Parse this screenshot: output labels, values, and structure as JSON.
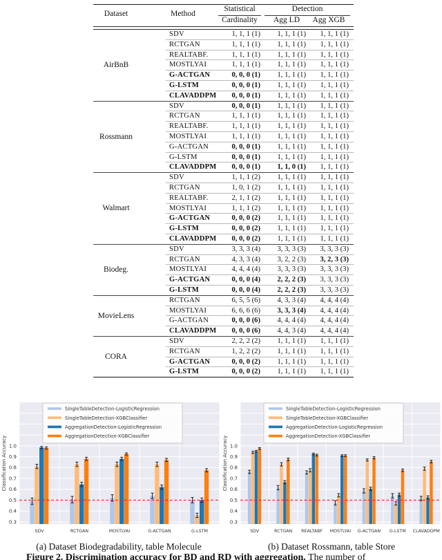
{
  "table": {
    "headers": {
      "dataset": "Dataset",
      "method": "Method",
      "statistical": "Statistical",
      "detection": "Detection",
      "cardinality": "Cardinality",
      "agg_ld": "Agg LD",
      "agg_xgb": "Agg XGB"
    },
    "groups": [
      {
        "dataset": "AirBnB",
        "rows": [
          {
            "method": "SDV",
            "mb": false,
            "cells": [
              "1, 1, 1 (1)",
              "1, 1, 1 (1)",
              "1, 1, 1 (1)"
            ],
            "cb": [
              false,
              false,
              false
            ]
          },
          {
            "method": "RCTGAN",
            "mb": false,
            "cells": [
              "1, 1, 1 (1)",
              "1, 1, 1 (1)",
              "1, 1, 1 (1)"
            ],
            "cb": [
              false,
              false,
              false
            ]
          },
          {
            "method": "REALTABF.",
            "mb": false,
            "cells": [
              "1, 1, 1 (1)",
              "1, 1, 1 (1)",
              "1, 1, 1 (1)"
            ],
            "cb": [
              false,
              false,
              false
            ]
          },
          {
            "method": "MOSTLYAI",
            "mb": false,
            "cells": [
              "1, 1, 1 (1)",
              "1, 1, 1 (1)",
              "1, 1, 1 (1)"
            ],
            "cb": [
              false,
              false,
              false
            ]
          },
          {
            "method": "G-ACTGAN",
            "mb": true,
            "cells": [
              "0, 0, 0 (1)",
              "1, 1, 1 (1)",
              "1, 1, 1 (1)"
            ],
            "cb": [
              true,
              false,
              false
            ]
          },
          {
            "method": "G-LSTM",
            "mb": true,
            "cells": [
              "0, 0, 0 (1)",
              "1, 1, 1 (1)",
              "1, 1, 1 (1)"
            ],
            "cb": [
              true,
              false,
              false
            ]
          },
          {
            "method": "CLAVADDPM",
            "mb": true,
            "cells": [
              "0, 0, 0 (1)",
              "1, 1, 1 (1)",
              "1, 1, 1 (1)"
            ],
            "cb": [
              true,
              false,
              false
            ]
          }
        ]
      },
      {
        "dataset": "Rossmann",
        "rows": [
          {
            "method": "SDV",
            "mb": false,
            "cells": [
              "0, 0, 0 (1)",
              "1, 1, 1 (1)",
              "1, 1, 1 (1)"
            ],
            "cb": [
              true,
              false,
              false
            ]
          },
          {
            "method": "RCTGAN",
            "mb": false,
            "cells": [
              "1, 1, 1 (1)",
              "1, 1, 1 (1)",
              "1, 1, 1 (1)"
            ],
            "cb": [
              false,
              false,
              false
            ]
          },
          {
            "method": "REALTABF.",
            "mb": false,
            "cells": [
              "1, 1, 1 (1)",
              "1, 1, 1 (1)",
              "1, 1, 1 (1)"
            ],
            "cb": [
              false,
              false,
              false
            ]
          },
          {
            "method": "MOSTLYAI",
            "mb": false,
            "cells": [
              "1, 1, 1 (1)",
              "1, 1, 1 (1)",
              "1, 1, 1 (1)"
            ],
            "cb": [
              false,
              false,
              false
            ]
          },
          {
            "method": "G-ACTGAN",
            "mb": false,
            "cells": [
              "0, 0, 0 (1)",
              "1, 1, 1 (1)",
              "1, 1, 1 (1)"
            ],
            "cb": [
              true,
              false,
              false
            ]
          },
          {
            "method": "G-LSTM",
            "mb": false,
            "cells": [
              "0, 0, 0 (1)",
              "1, 1, 1 (1)",
              "1, 1, 1 (1)"
            ],
            "cb": [
              true,
              false,
              false
            ]
          },
          {
            "method": "CLAVADDPM",
            "mb": true,
            "cells": [
              "0, 0, 0 (1)",
              "1, 1, 0 (1)",
              "1, 1, 1 (1)"
            ],
            "cb": [
              true,
              true,
              false
            ]
          }
        ]
      },
      {
        "dataset": "Walmart",
        "rows": [
          {
            "method": "SDV",
            "mb": false,
            "cells": [
              "1, 1, 1 (2)",
              "1, 1, 1 (1)",
              "1, 1, 1 (1)"
            ],
            "cb": [
              false,
              false,
              false
            ]
          },
          {
            "method": "RCTGAN",
            "mb": false,
            "cells": [
              "1, 0, 1 (2)",
              "1, 1, 1 (1)",
              "1, 1, 1 (1)"
            ],
            "cb": [
              false,
              false,
              false
            ]
          },
          {
            "method": "REALTABF.",
            "mb": false,
            "cells": [
              "2, 1, 1 (2)",
              "1, 1, 1 (1)",
              "1, 1, 1 (1)"
            ],
            "cb": [
              false,
              false,
              false
            ]
          },
          {
            "method": "MOSTLYAI",
            "mb": false,
            "cells": [
              "1, 1, 1 (2)",
              "1, 1, 1 (1)",
              "1, 1, 1 (1)"
            ],
            "cb": [
              false,
              false,
              false
            ]
          },
          {
            "method": "G-ACTGAN",
            "mb": true,
            "cells": [
              "0, 0, 0 (2)",
              "1, 1, 1 (1)",
              "1, 1, 1 (1)"
            ],
            "cb": [
              true,
              false,
              false
            ]
          },
          {
            "method": "G-LSTM",
            "mb": true,
            "cells": [
              "0, 0, 0 (2)",
              "1, 1, 1 (1)",
              "1, 1, 1 (1)"
            ],
            "cb": [
              true,
              false,
              false
            ]
          },
          {
            "method": "CLAVADDPM",
            "mb": true,
            "cells": [
              "0, 0, 0 (2)",
              "1, 1, 1 (1)",
              "1, 1, 1 (1)"
            ],
            "cb": [
              true,
              false,
              false
            ]
          }
        ]
      },
      {
        "dataset": "Biodeg.",
        "rows": [
          {
            "method": "SDV",
            "mb": false,
            "cells": [
              "3, 3, 3 (4)",
              "3, 3, 3 (3)",
              "3, 3, 3 (3)"
            ],
            "cb": [
              false,
              false,
              false
            ]
          },
          {
            "method": "RCTGAN",
            "mb": false,
            "cells": [
              "4, 3, 3 (4)",
              "3, 2, 2 (3)",
              "3, 2, 3 (3)"
            ],
            "cb": [
              false,
              false,
              true
            ]
          },
          {
            "method": "MOSTLYAI",
            "mb": false,
            "cells": [
              "4, 4, 4 (4)",
              "3, 3, 3 (3)",
              "3, 3, 3 (3)"
            ],
            "cb": [
              false,
              false,
              false
            ]
          },
          {
            "method": "G-ACTGAN",
            "mb": true,
            "cells": [
              "0, 0, 0 (4)",
              "2, 2, 2 (3)",
              "3, 3, 3 (3)"
            ],
            "cb": [
              true,
              true,
              false
            ]
          },
          {
            "method": "G-LSTM",
            "mb": true,
            "cells": [
              "0, 0, 0 (4)",
              "2, 2, 2 (3)",
              "3, 3, 3 (3)"
            ],
            "cb": [
              true,
              true,
              false
            ]
          }
        ]
      },
      {
        "dataset": "MovieLens",
        "rows": [
          {
            "method": "RCTGAN",
            "mb": false,
            "cells": [
              "6, 5, 5 (6)",
              "4, 3, 3 (4)",
              "4, 4, 4 (4)"
            ],
            "cb": [
              false,
              false,
              false
            ]
          },
          {
            "method": "MOSTLYAI",
            "mb": false,
            "cells": [
              "6, 6, 6 (6)",
              "3, 3, 3 (4)",
              "4, 4, 4 (4)"
            ],
            "cb": [
              false,
              true,
              false
            ]
          },
          {
            "method": "G-ACTGAN",
            "mb": false,
            "cells": [
              "0, 0, 0 (6)",
              "4, 4, 4 (4)",
              "4, 4, 4 (4)"
            ],
            "cb": [
              true,
              false,
              false
            ]
          },
          {
            "method": "CLAVADDPM",
            "mb": true,
            "cells": [
              "0, 0, 0 (6)",
              "4, 4, 3 (4)",
              "4, 4, 4 (4)"
            ],
            "cb": [
              true,
              false,
              false
            ]
          }
        ]
      },
      {
        "dataset": "CORA",
        "rows": [
          {
            "method": "SDV",
            "mb": false,
            "cells": [
              "2, 2, 2 (2)",
              "1, 1, 1 (1)",
              "1, 1, 1 (1)"
            ],
            "cb": [
              false,
              false,
              false
            ]
          },
          {
            "method": "RCTGAN",
            "mb": false,
            "cells": [
              "1, 2, 2 (2)",
              "1, 1, 1 (1)",
              "1, 1, 1 (1)"
            ],
            "cb": [
              false,
              false,
              false
            ]
          },
          {
            "method": "G-ACTGAN",
            "mb": true,
            "cells": [
              "0, 0, 0 (2)",
              "1, 1, 1 (1)",
              "1, 1, 1 (1)"
            ],
            "cb": [
              true,
              false,
              false
            ]
          },
          {
            "method": "G-LSTM",
            "mb": true,
            "cells": [
              "0, 0, 0 (2)",
              "1, 1, 1 (1)",
              "1, 1, 1 (1)"
            ],
            "cb": [
              true,
              false,
              false
            ]
          }
        ]
      }
    ]
  },
  "figures": {
    "caption_a": "(a) Dataset Biodegradability, table Molecule",
    "caption_b": "(b) Dataset Rossmann, table Store",
    "clipped_caption_bold": "Figure 2. Discrimination accuracy for BD and RD with aggregation.",
    "clipped_caption_rest": " The number of"
  },
  "chart_data": [
    {
      "type": "bar",
      "title": "",
      "ylabel": "Classification Accuracy",
      "caption": "(a) Dataset Biodegradability, table Molecule",
      "categories": [
        "SDV",
        "RCTGAN",
        "MOSTLYAI",
        "G-ACTGAN",
        "G-LSTM"
      ],
      "series": [
        {
          "name": "SingleTableDetection-LogisticRegression",
          "color": "#aec7e8",
          "values": [
            0.49,
            0.505,
            0.52,
            0.54,
            0.5
          ],
          "errors": [
            0.03,
            0.03,
            0.03,
            0.025,
            0.025
          ]
        },
        {
          "name": "SingleTableDetection-XGBClassifier",
          "color": "#ffbb78",
          "values": [
            0.81,
            0.83,
            0.83,
            0.83,
            0.36
          ],
          "errors": [
            0.02,
            0.02,
            0.02,
            0.02,
            0.02
          ]
        },
        {
          "name": "AggregationDetection-LogisticRegression",
          "color": "#1f77b4",
          "values": [
            0.985,
            0.645,
            0.88,
            0.62,
            0.5
          ],
          "errors": [
            0.01,
            0.02,
            0.015,
            0.02,
            0.02
          ]
        },
        {
          "name": "AggregationDetection-XGBClassifier",
          "color": "#ff7f0e",
          "values": [
            0.98,
            0.88,
            0.925,
            0.87,
            0.775
          ],
          "errors": [
            0.01,
            0.015,
            0.01,
            0.015,
            0.015
          ]
        }
      ],
      "yticks": [
        0.3,
        0.4,
        0.5,
        0.6,
        0.7,
        0.8,
        0.9,
        1.0
      ],
      "ylim": [
        0.28,
        1.4
      ],
      "ref_line": {
        "y": 0.5,
        "color": "#ff1a1a",
        "style": "dashed"
      },
      "grid": true,
      "plot_bg": "#eaeaf2",
      "legend_position": "upper-left"
    },
    {
      "type": "bar",
      "title": "",
      "ylabel": "Classification Accuracy",
      "caption": "(b) Dataset Rossmann, table Store",
      "categories": [
        "SDV",
        "RCTGAN",
        "REALTABF",
        "MOSTLYAI",
        "G-ACTGAN",
        "G-LSTM",
        "CLAVADDPM"
      ],
      "series": [
        {
          "name": "SingleTableDetection-LogisticRegression",
          "color": "#aec7e8",
          "values": [
            0.76,
            0.615,
            0.755,
            0.475,
            0.585,
            0.54,
            0.515
          ],
          "errors": [
            0.015,
            0.02,
            0.015,
            0.02,
            0.02,
            0.02,
            0.02
          ]
        },
        {
          "name": "SingleTableDetection-XGBClassifier",
          "color": "#ffbb78",
          "values": [
            0.94,
            0.83,
            0.775,
            0.545,
            0.87,
            0.47,
            0.79
          ],
          "errors": [
            0.01,
            0.015,
            0.015,
            0.015,
            0.01,
            0.015,
            0.015
          ]
        },
        {
          "name": "AggregationDetection-LogisticRegression",
          "color": "#1f77b4",
          "values": [
            0.95,
            0.665,
            0.925,
            0.91,
            0.605,
            0.55,
            0.525
          ],
          "errors": [
            0.008,
            0.015,
            0.008,
            0.008,
            0.015,
            0.015,
            0.015
          ]
        },
        {
          "name": "AggregationDetection-XGBClassifier",
          "color": "#ff7f0e",
          "values": [
            0.975,
            0.875,
            0.915,
            0.91,
            0.89,
            0.775,
            0.855
          ],
          "errors": [
            0.008,
            0.012,
            0.008,
            0.008,
            0.01,
            0.012,
            0.012
          ]
        }
      ],
      "yticks": [
        0.3,
        0.4,
        0.5,
        0.6,
        0.7,
        0.8,
        0.9,
        1.0
      ],
      "ylim": [
        0.28,
        1.4
      ],
      "ref_line": {
        "y": 0.5,
        "color": "#ff1a1a",
        "style": "dashed"
      },
      "grid": true,
      "plot_bg": "#eaeaf2",
      "legend_position": "upper-left"
    }
  ]
}
